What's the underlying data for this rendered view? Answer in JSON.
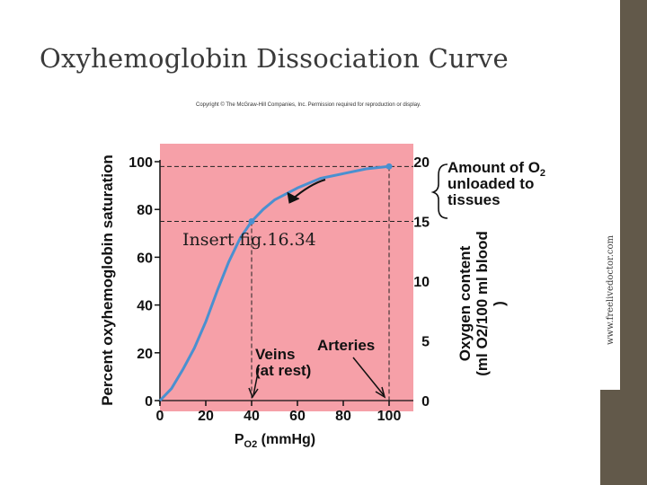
{
  "slide": {
    "title": "Oxyhemoglobin Dissociation Curve",
    "side_text": "www.freelivedoctor.com",
    "copyright": "Copyright © The McGraw-Hill Companies, Inc. Permission required for reproduction or display.",
    "insert_label": "Insert fig.16.34"
  },
  "chart_data": {
    "type": "line",
    "title": "",
    "ylabel": "Percent oxyhemoglobin saturation",
    "ylabel2": "Oxygen content (ml O2/100 ml blood)",
    "xlabel": "PO2 (mmHg)",
    "xlim": [
      0,
      100
    ],
    "ylim": [
      0,
      100
    ],
    "ylim2": [
      0,
      20
    ],
    "xticks": [
      "0",
      "20",
      "40",
      "60",
      "80",
      "100"
    ],
    "yticks": [
      "0",
      "20",
      "40",
      "60",
      "80",
      "100"
    ],
    "y2ticks": [
      "0",
      "5",
      "10",
      "15",
      "20"
    ],
    "series": [
      {
        "x": [
          0,
          5,
          10,
          15,
          20,
          25,
          30,
          35,
          40,
          45,
          50,
          60,
          70,
          80,
          90,
          100
        ],
        "y": [
          0,
          5,
          13,
          22,
          33,
          46,
          58,
          68,
          75,
          80,
          84,
          89,
          93,
          95,
          97,
          98
        ]
      }
    ],
    "points": [
      {
        "x": 40,
        "y": 75
      },
      {
        "x": 100,
        "y": 98
      }
    ],
    "annotations": {
      "veins": "Veins\n(at rest)",
      "arteries": "Arteries",
      "unloaded": "Amount of O2\nunloaded to\ntissues"
    },
    "colors": {
      "plot_background": "#f6a0a8",
      "curve": "#4a90d0",
      "dashed": "#222222"
    },
    "grid": false
  }
}
